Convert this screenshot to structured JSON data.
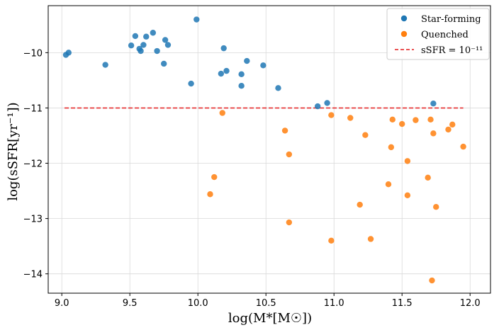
{
  "chart_data": {
    "type": "scatter",
    "title": "",
    "xlabel": "log(M*[M☉])",
    "ylabel": "log(sSFR[yr⁻¹])",
    "xlim": [
      8.9,
      12.15
    ],
    "ylim": [
      -14.35,
      -9.15
    ],
    "xticks": [
      9.0,
      9.5,
      10.0,
      10.5,
      11.0,
      11.5,
      12.0
    ],
    "xtick_labels": [
      "9.0",
      "9.5",
      "10.0",
      "10.5",
      "11.0",
      "11.5",
      "12.0"
    ],
    "yticks": [
      -10,
      -11,
      -12,
      -13,
      -14
    ],
    "ytick_labels": [
      "−10",
      "−11",
      "−12",
      "−13",
      "−14"
    ],
    "grid": true,
    "legend_position": "top-right",
    "series": [
      {
        "name": "Star-forming",
        "color": "#1f77b4",
        "points": [
          [
            9.03,
            -10.04
          ],
          [
            9.05,
            -10.0
          ],
          [
            9.32,
            -10.22
          ],
          [
            9.51,
            -9.87
          ],
          [
            9.54,
            -9.7
          ],
          [
            9.57,
            -9.93
          ],
          [
            9.58,
            -9.97
          ],
          [
            9.6,
            -9.86
          ],
          [
            9.62,
            -9.71
          ],
          [
            9.67,
            -9.64
          ],
          [
            9.7,
            -9.97
          ],
          [
            9.75,
            -10.2
          ],
          [
            9.76,
            -9.77
          ],
          [
            9.78,
            -9.86
          ],
          [
            9.95,
            -10.56
          ],
          [
            9.99,
            -9.4
          ],
          [
            10.17,
            -10.38
          ],
          [
            10.19,
            -9.92
          ],
          [
            10.21,
            -10.33
          ],
          [
            10.32,
            -10.6
          ],
          [
            10.32,
            -10.39
          ],
          [
            10.36,
            -10.15
          ],
          [
            10.48,
            -10.23
          ],
          [
            10.59,
            -10.64
          ],
          [
            10.88,
            -10.97
          ],
          [
            10.95,
            -10.91
          ],
          [
            11.73,
            -10.92
          ]
        ]
      },
      {
        "name": "Quenched",
        "color": "#ff7f0e",
        "points": [
          [
            10.09,
            -12.56
          ],
          [
            10.12,
            -12.25
          ],
          [
            10.18,
            -11.09
          ],
          [
            10.64,
            -11.41
          ],
          [
            10.67,
            -11.84
          ],
          [
            10.67,
            -13.07
          ],
          [
            10.98,
            -11.13
          ],
          [
            10.98,
            -13.4
          ],
          [
            11.12,
            -11.18
          ],
          [
            11.19,
            -12.75
          ],
          [
            11.23,
            -11.49
          ],
          [
            11.27,
            -13.37
          ],
          [
            11.4,
            -12.38
          ],
          [
            11.42,
            -11.71
          ],
          [
            11.43,
            -11.21
          ],
          [
            11.5,
            -11.29
          ],
          [
            11.54,
            -11.96
          ],
          [
            11.54,
            -12.58
          ],
          [
            11.6,
            -11.22
          ],
          [
            11.69,
            -12.26
          ],
          [
            11.71,
            -11.21
          ],
          [
            11.72,
            -14.12
          ],
          [
            11.73,
            -11.46
          ],
          [
            11.75,
            -12.79
          ],
          [
            11.84,
            -11.39
          ],
          [
            11.87,
            -11.3
          ],
          [
            11.95,
            -11.7
          ]
        ]
      }
    ],
    "reference_line": {
      "name": "sSFR = 10⁻¹¹",
      "y": -11,
      "x_range": [
        9.02,
        11.95
      ],
      "color": "#e31a1c",
      "style": "dashed"
    }
  }
}
